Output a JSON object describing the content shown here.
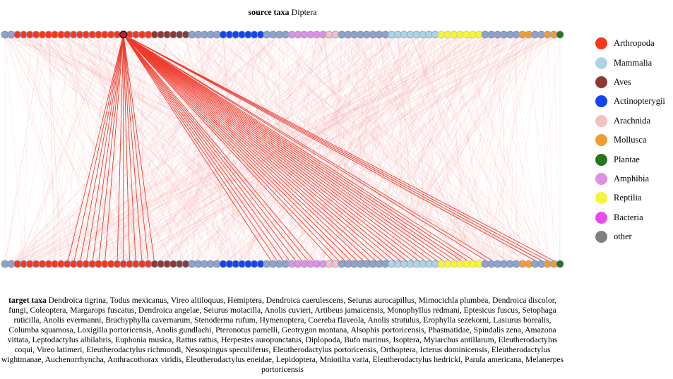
{
  "header": {
    "source_label": "source taxa",
    "source_value": "Diptera"
  },
  "legend": {
    "items": [
      {
        "label": "Arthropoda",
        "color": "#f2391e"
      },
      {
        "label": "Mammalia",
        "color": "#abd5e3"
      },
      {
        "label": "Aves",
        "color": "#8b3a36"
      },
      {
        "label": "Actinopterygii",
        "color": "#1444ee"
      },
      {
        "label": "Arachnida",
        "color": "#f6bfc4"
      },
      {
        "label": "Mollusca",
        "color": "#f29b31"
      },
      {
        "label": "Plantae",
        "color": "#2b7321"
      },
      {
        "label": "Amphibia",
        "color": "#de90e2"
      },
      {
        "label": "Reptilia",
        "color": "#f7f53a"
      },
      {
        "label": "Bacteria",
        "color": "#e74ded"
      },
      {
        "label": "other",
        "color": "#7f7f7f"
      }
    ]
  },
  "footer": {
    "target_label": "target taxa",
    "target_value": "Dendroica tigrina, Todus mexicanus, Vireo altiloquus, Hemiptera, Dendroica caerulescens, Seiurus aurocapillus, Mimocichla plumbea, Dendroica discolor, fungi, Coleoptera, Margarops fuscatus, Dendroica angelae, Seiurus motacilla, Anolis cuvieri, Artibeus jamaicensis, Monophyllus redmani, Eptesicus fuscus, Setophaga ruticilla, Anolis evermanni, Brachyphylla cavernarum, Stenoderma rufum, Hymenoptera, Coereba flaveola, Anolis stratulus, Erophylla sezekorni, Lasiurus borealis, Columba squamosa, Loxigilla portoricensis, Anolis gundlachi, Pteronotus parnelli, Geotrygon montana, Alsophis portoricensis, Phasmatidae, Spindalis zena, Amazona vittata, Leptodactylus albilabris, Euphonia musica, Rattus rattus, Herpestes auropunctatus, Diplopoda, Bufo marinus, Isoptera, Myiarchus antillarum, Eleutherodactylus coqui, Vireo latimeri, Eleutherodactylus richmondi, Nesospingus speculiferus, Eleutherodactylus portoricensis, Orthoptera, Icterus dominicensis, Eleutherodactylus wightmanae, Auchenorrhyncha, Anthracothorax viridis, Eleutherodactylus eneidae, Lepidoptera, Mniotilta varia, Eleutherodactylus hedricki, Parula americana, Melanerpes portoricensis"
  }
}
